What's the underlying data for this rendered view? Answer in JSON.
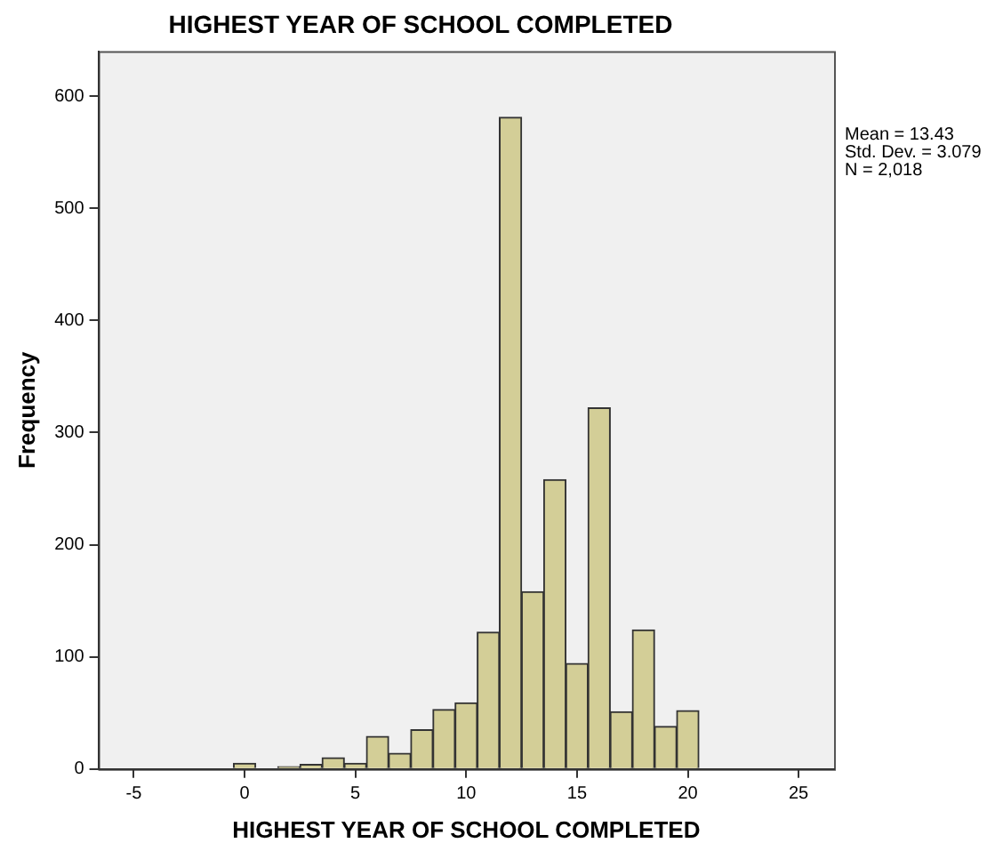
{
  "chart_data": {
    "type": "histogram",
    "title": "HIGHEST YEAR OF SCHOOL COMPLETED",
    "xlabel": "HIGHEST YEAR OF SCHOOL COMPLETED",
    "ylabel": "Frequency",
    "bins": [
      -0.5,
      0.5,
      1.5,
      2.5,
      3.5,
      4.5,
      5.5,
      6.5,
      7.5,
      8.5,
      9.5,
      10.5,
      11.5,
      12.5,
      13.5,
      14.5,
      15.5,
      16.5,
      17.5,
      18.5,
      19.5,
      20.5
    ],
    "values": [
      5,
      0,
      2,
      4,
      10,
      5,
      29,
      14,
      35,
      53,
      59,
      122,
      581,
      158,
      258,
      94,
      322,
      51,
      124,
      38,
      52
    ],
    "color": "#d3ce97",
    "xlim": [
      -6.6,
      26.6
    ],
    "xticks": [
      -5,
      0,
      5,
      10,
      15,
      20,
      25
    ],
    "ylim": [
      0,
      640
    ],
    "yticks": [
      0,
      100,
      200,
      300,
      400,
      500,
      600
    ],
    "grid": false,
    "annotations": [
      "Mean = 13.43",
      "Std. Dev. = 3.079",
      "N = 2,018"
    ]
  }
}
